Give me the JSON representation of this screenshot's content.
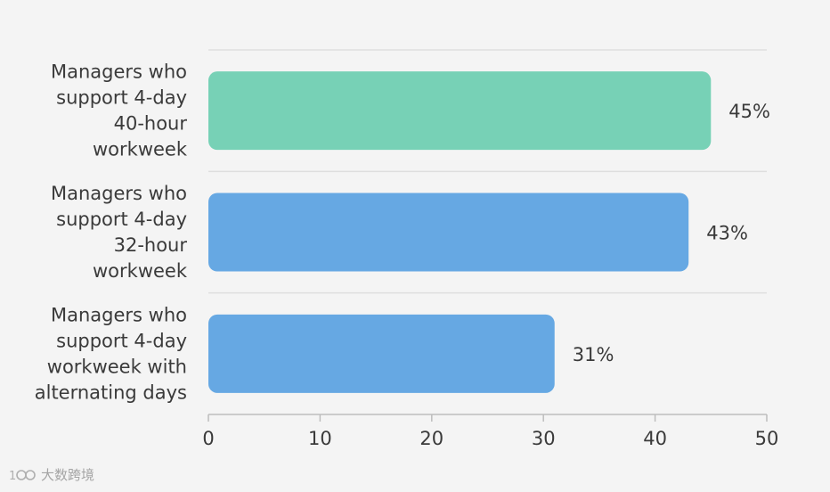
{
  "chart_data": {
    "type": "bar",
    "orientation": "horizontal",
    "categories": [
      [
        "Managers who",
        "support 4-day",
        "40-hour",
        "workweek"
      ],
      [
        "Managers who",
        "support 4-day",
        "32-hour",
        "workweek"
      ],
      [
        "Managers who",
        "support 4-day",
        "workweek with",
        "alternating days"
      ]
    ],
    "values": [
      45,
      43,
      31
    ],
    "value_labels": [
      "45%",
      "43%",
      "31%"
    ],
    "colors": [
      "#77d1b6",
      "#66a8e3",
      "#66a8e3"
    ],
    "xlim": [
      0,
      50
    ],
    "xticks": [
      0,
      10,
      20,
      30,
      40,
      50
    ],
    "xtick_labels": [
      "0",
      "10",
      "20",
      "30",
      "40",
      "50"
    ],
    "title": "",
    "xlabel": "",
    "ylabel": "",
    "grid": true,
    "legend": "none"
  },
  "watermark": {
    "text": "大数跨境",
    "logo": "100-logo-icon"
  }
}
